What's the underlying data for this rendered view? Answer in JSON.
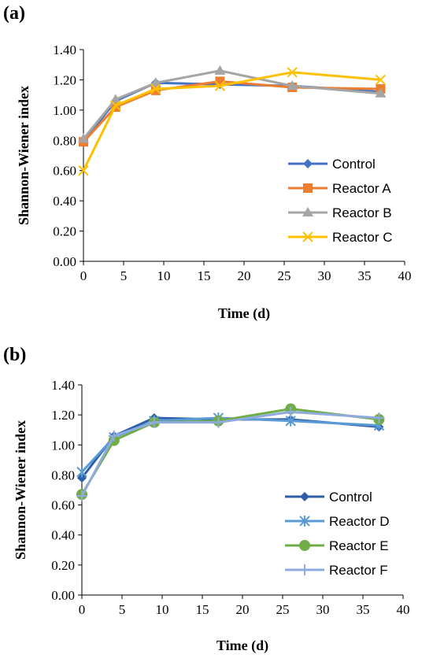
{
  "chart_data": [
    {
      "panel_label": "(a)",
      "type": "line",
      "xlabel": "Time (d)",
      "ylabel": "Shannon-Wiener index",
      "xlim": [
        0,
        40
      ],
      "ylim": [
        0,
        1.4
      ],
      "xticks": [
        "0",
        "5",
        "10",
        "15",
        "20",
        "25",
        "30",
        "35",
        "40"
      ],
      "yticks": [
        "0.00",
        "0.20",
        "0.40",
        "0.60",
        "0.80",
        "1.00",
        "1.20",
        "1.40"
      ],
      "grid": false,
      "legend_position": "bottom-right",
      "series": [
        {
          "name": "Control",
          "color": "#4472c4",
          "marker": "diamond",
          "x": [
            0,
            4,
            9,
            17,
            26,
            37
          ],
          "y": [
            0.79,
            1.06,
            1.18,
            1.17,
            1.16,
            1.12
          ]
        },
        {
          "name": "Reactor A",
          "color": "#ed7d31",
          "marker": "square",
          "x": [
            0,
            4,
            9,
            17,
            26,
            37
          ],
          "y": [
            0.79,
            1.02,
            1.13,
            1.19,
            1.15,
            1.14
          ]
        },
        {
          "name": "Reactor B",
          "color": "#a5a5a5",
          "marker": "triangle",
          "x": [
            0,
            4,
            9,
            17,
            26,
            37
          ],
          "y": [
            0.81,
            1.07,
            1.18,
            1.26,
            1.16,
            1.11
          ]
        },
        {
          "name": "Reactor C",
          "color": "#ffc000",
          "marker": "x",
          "x": [
            0,
            4,
            9,
            17,
            26,
            37
          ],
          "y": [
            0.6,
            1.03,
            1.14,
            1.16,
            1.25,
            1.2
          ]
        }
      ]
    },
    {
      "panel_label": "(b)",
      "type": "line",
      "xlabel": "Time (d)",
      "ylabel": "Shannon-Wiener index",
      "xlim": [
        0,
        40
      ],
      "ylim": [
        0,
        1.4
      ],
      "xticks": [
        "0",
        "5",
        "10",
        "15",
        "20",
        "25",
        "30",
        "35",
        "40"
      ],
      "yticks": [
        "0.00",
        "0.20",
        "0.40",
        "0.60",
        "0.80",
        "1.00",
        "1.20",
        "1.40"
      ],
      "grid": false,
      "legend_position": "bottom-right",
      "series": [
        {
          "name": "Control",
          "color": "#2e5ea8",
          "marker": "diamond",
          "x": [
            0,
            4,
            9,
            17,
            26,
            37
          ],
          "y": [
            0.78,
            1.06,
            1.18,
            1.17,
            1.17,
            1.12
          ]
        },
        {
          "name": "Reactor D",
          "color": "#5b9bd5",
          "marker": "asterisk",
          "x": [
            0,
            4,
            9,
            17,
            26,
            37
          ],
          "y": [
            0.82,
            1.05,
            1.16,
            1.18,
            1.16,
            1.13
          ]
        },
        {
          "name": "Reactor E",
          "color": "#70ad47",
          "marker": "circle",
          "x": [
            0,
            4,
            9,
            17,
            26,
            37
          ],
          "y": [
            0.67,
            1.03,
            1.15,
            1.16,
            1.24,
            1.17
          ]
        },
        {
          "name": "Reactor F",
          "color": "#8faadc",
          "marker": "plus",
          "x": [
            0,
            4,
            9,
            17,
            26,
            37
          ],
          "y": [
            0.66,
            1.06,
            1.15,
            1.15,
            1.22,
            1.18
          ]
        }
      ]
    }
  ]
}
